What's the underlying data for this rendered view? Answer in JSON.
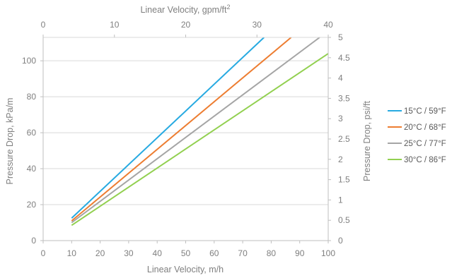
{
  "chart_data": {
    "type": "line",
    "x": [
      10,
      20,
      30,
      40,
      50,
      60,
      70,
      80,
      90,
      100
    ],
    "xlabel": "Linear Velocity, m/h",
    "ylabel": "Pressure Drop, kPa/m",
    "x2label": "Linear Velocity, gpm/ft",
    "x2label_sup": "2",
    "y2label": "Pressure Drop, psi/ft",
    "xlim": [
      0,
      100
    ],
    "ylim": [
      0,
      113
    ],
    "x2lim": [
      0,
      40
    ],
    "y2lim": [
      0,
      5
    ],
    "xticks": [
      "0",
      "10",
      "20",
      "30",
      "40",
      "50",
      "60",
      "70",
      "80",
      "90",
      "100"
    ],
    "yticks": [
      "0",
      "20",
      "40",
      "60",
      "80",
      "100"
    ],
    "x2ticks": [
      "0",
      "10",
      "20",
      "30",
      "40"
    ],
    "y2ticks": [
      "0",
      "0.5",
      "1",
      "1.5",
      "2",
      "2.5",
      "3",
      "3.5",
      "4",
      "4.5",
      "5"
    ],
    "grid": "horizontal",
    "legend_position": "right",
    "series": [
      {
        "name": "15°C / 59°F",
        "color": "#27aae1",
        "points": [
          [
            10,
            12.5
          ],
          [
            77.5,
            113
          ]
        ]
      },
      {
        "name": "20°C / 68°F",
        "color": "#ed7d31",
        "points": [
          [
            10,
            11
          ],
          [
            87,
            113
          ]
        ]
      },
      {
        "name": "25°C / 77°F",
        "color": "#a5a5a5",
        "points": [
          [
            10,
            10
          ],
          [
            97,
            113
          ]
        ]
      },
      {
        "name": "30°C / 86°F",
        "color": "#92d050",
        "points": [
          [
            10,
            8.5
          ],
          [
            100,
            104
          ]
        ]
      }
    ]
  }
}
